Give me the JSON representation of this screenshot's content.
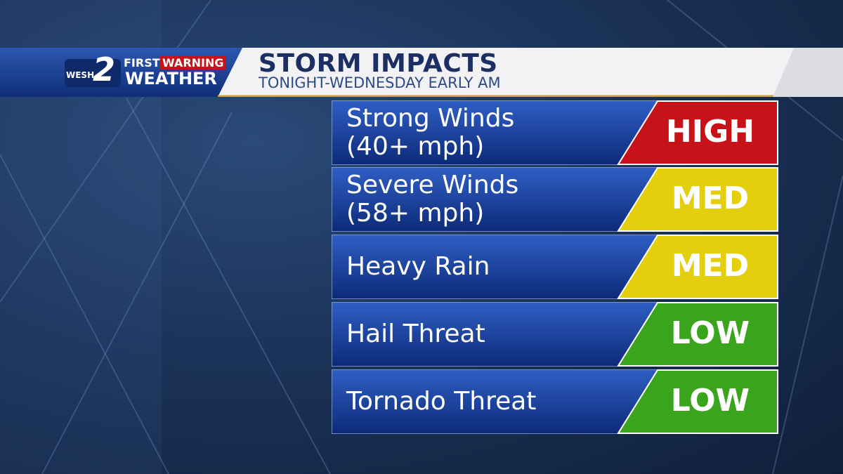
{
  "logo": {
    "station": "WESH",
    "channel": "2",
    "brand_top_left": "FIRST",
    "brand_top_right": "WARNING",
    "brand_bottom": "WEATHER"
  },
  "header": {
    "title": "STORM IMPACTS",
    "subtitle": "TONIGHT-WEDNESDAY EARLY AM"
  },
  "rows": [
    {
      "label": [
        "Strong Winds",
        "(40+ mph)"
      ],
      "level": "HIGH",
      "color": "#c8121a"
    },
    {
      "label": [
        "Severe Winds",
        "(58+ mph)"
      ],
      "level": "MED",
      "color": "#e3cf0c"
    },
    {
      "label": [
        "Heavy Rain"
      ],
      "level": "MED",
      "color": "#e3cf0c"
    },
    {
      "label": [
        "Hail Threat"
      ],
      "level": "LOW",
      "color": "#3aa51c"
    },
    {
      "label": [
        "Tornado Threat"
      ],
      "level": "LOW",
      "color": "#3aa51c"
    }
  ]
}
